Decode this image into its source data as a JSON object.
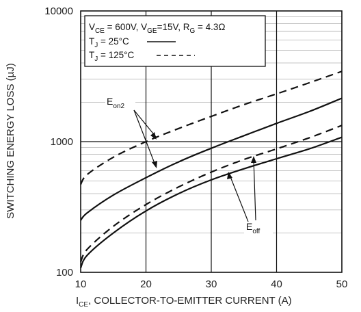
{
  "chart_data": {
    "type": "line",
    "x_axis": {
      "label_main": "I",
      "label_sub": "CE",
      "label_rest": ", COLLECTOR-TO-EMITTER CURRENT (A)",
      "range": [
        10,
        50
      ],
      "ticks": [
        "10",
        "20",
        "30",
        "40",
        "50"
      ]
    },
    "y_axis": {
      "label": "SWITCHING ENERGY LOSS (µJ)",
      "scale": "log",
      "range": [
        100,
        10000
      ],
      "ticks": [
        "100",
        "1000",
        "10000"
      ]
    },
    "grid": true,
    "legend": {
      "placement": "top-left",
      "conditions": {
        "vce_main": "V",
        "vce_sub": "CE",
        "vce_val": " = 600V, ",
        "vge_main": "V",
        "vge_sub": "GE",
        "vge_val": "=15V, ",
        "rg_main": "R",
        "rg_sub": "G",
        "rg_val": " = 4.3Ω"
      },
      "entries": [
        {
          "main": "T",
          "sub": "J",
          "rest": " = 25°C",
          "style": "solid"
        },
        {
          "main": "T",
          "sub": "J",
          "rest": " = 125°C",
          "style": "dashed"
        }
      ]
    },
    "annotations": [
      {
        "main": "E",
        "sub": "on2"
      },
      {
        "main": "E",
        "sub": "off"
      }
    ],
    "series": [
      {
        "curve": "Eon2",
        "temp": "25°C",
        "style": "solid",
        "x": [
          10,
          11,
          15,
          20,
          25,
          30,
          35,
          40,
          45,
          50
        ],
        "y": [
          250,
          285,
          390,
          530,
          700,
          890,
          1110,
          1380,
          1700,
          2150
        ]
      },
      {
        "curve": "Eon2",
        "temp": "125°C",
        "style": "dashed",
        "x": [
          10,
          11,
          15,
          20,
          25,
          30,
          35,
          40,
          45,
          50
        ],
        "y": [
          470,
          560,
          760,
          1000,
          1260,
          1560,
          1920,
          2320,
          2820,
          3450
        ]
      },
      {
        "curve": "Eoff",
        "temp": "25°C",
        "style": "solid",
        "x": [
          10,
          11,
          15,
          20,
          25,
          30,
          35,
          40,
          45,
          50
        ],
        "y": [
          108,
          135,
          200,
          295,
          400,
          510,
          620,
          740,
          880,
          1080
        ]
      },
      {
        "curve": "Eoff",
        "temp": "125°C",
        "style": "dashed",
        "x": [
          10,
          11,
          15,
          20,
          25,
          30,
          35,
          40,
          45,
          50
        ],
        "y": [
          120,
          150,
          225,
          330,
          450,
          585,
          730,
          880,
          1070,
          1330
        ]
      }
    ]
  }
}
